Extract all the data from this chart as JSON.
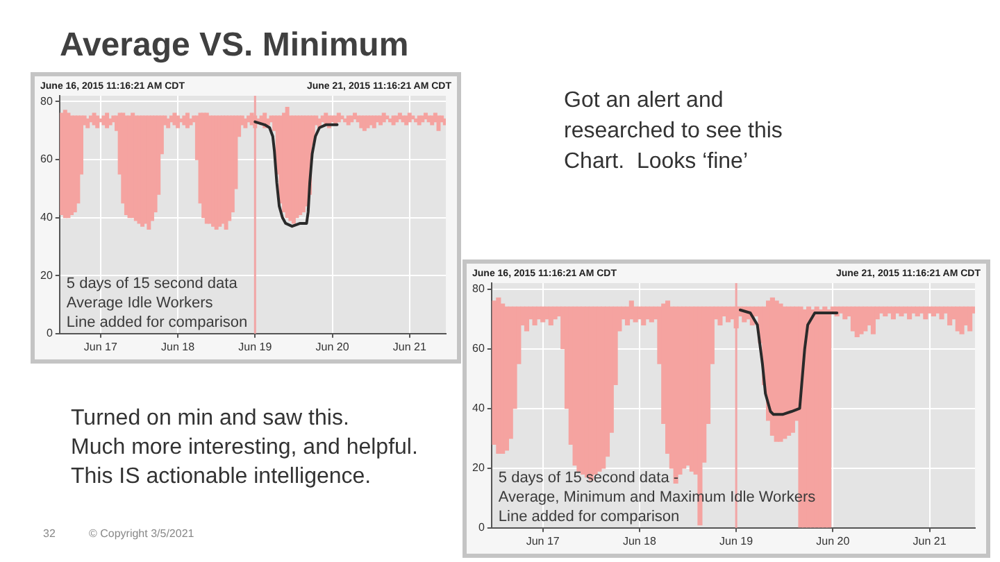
{
  "chart_data": [
    {
      "type": "other",
      "title": "Average VS. Minimum",
      "annotations": [
        "Got an alert and\nresearched to see this\nChart.  Looks ‘fine’",
        "Turned on min and saw this.\nMuch more interesting, and helpful.\nThis IS actionable intelligence.",
        "32",
        "© Copyright 3/5/2021"
      ]
    },
    {
      "type": "bar",
      "annotations": [
        "June 16, 2015 11:16:21 AM CDT",
        "June 21, 2015 11:16:21 AM CDT",
        "5 days of 15 second data\nAverage Idle Workers\nLine added for comparison"
      ],
      "xlim": [
        "2015-06-16T11:16",
        "2015-06-21T11:16"
      ],
      "xticks": [
        {
          "value": "2015-06-17",
          "label": "Jun 17"
        },
        {
          "value": "2015-06-18",
          "label": "Jun 18"
        },
        {
          "value": "2015-06-19",
          "label": "Jun 19"
        },
        {
          "value": "2015-06-20",
          "label": "Jun 20"
        },
        {
          "value": "2015-06-21",
          "label": "Jun 21"
        }
      ],
      "ylim": [
        0,
        82
      ],
      "yticks": [
        0,
        20,
        40,
        60,
        80
      ],
      "grid": true,
      "ref_lines": [
        {
          "axis": "x",
          "value": "2015-06-19",
          "color": "#f2a5a5"
        }
      ],
      "series": [
        {
          "type": "bar",
          "color": "#f5a3a0",
          "x": [
            "2015-06-16T12:00",
            "2015-06-16T13:00",
            "2015-06-16T14:00",
            "2015-06-16T15:00",
            "2015-06-16T16:00",
            "2015-06-16T17:00",
            "2015-06-16T18:00",
            "2015-06-16T19:00",
            "2015-06-16T20:00",
            "2015-06-16T21:00",
            "2015-06-16T22:00",
            "2015-06-16T23:00",
            "2015-06-17T00:00",
            "2015-06-17T01:00",
            "2015-06-17T02:00",
            "2015-06-17T03:00",
            "2015-06-17T04:00",
            "2015-06-17T05:00",
            "2015-06-17T06:00",
            "2015-06-17T07:00",
            "2015-06-17T08:00",
            "2015-06-17T09:00",
            "2015-06-17T10:00",
            "2015-06-17T11:00",
            "2015-06-17T12:00",
            "2015-06-17T13:00",
            "2015-06-17T14:00",
            "2015-06-17T15:00",
            "2015-06-17T16:00",
            "2015-06-17T17:00",
            "2015-06-17T18:00",
            "2015-06-17T19:00",
            "2015-06-17T20:00",
            "2015-06-17T21:00",
            "2015-06-17T22:00",
            "2015-06-17T23:00",
            "2015-06-18T00:00",
            "2015-06-18T01:00",
            "2015-06-18T02:00",
            "2015-06-18T03:00",
            "2015-06-18T04:00",
            "2015-06-18T05:00",
            "2015-06-18T06:00",
            "2015-06-18T07:00",
            "2015-06-18T08:00",
            "2015-06-18T09:00",
            "2015-06-18T10:00",
            "2015-06-18T11:00",
            "2015-06-18T12:00",
            "2015-06-18T13:00",
            "2015-06-18T14:00",
            "2015-06-18T15:00",
            "2015-06-18T16:00",
            "2015-06-18T17:00",
            "2015-06-18T18:00",
            "2015-06-18T19:00",
            "2015-06-18T20:00",
            "2015-06-18T21:00",
            "2015-06-18T22:00",
            "2015-06-18T23:00",
            "2015-06-19T00:00",
            "2015-06-19T01:00",
            "2015-06-19T02:00",
            "2015-06-19T03:00",
            "2015-06-19T04:00",
            "2015-06-19T05:00",
            "2015-06-19T06:00",
            "2015-06-19T07:00",
            "2015-06-19T08:00",
            "2015-06-19T09:00",
            "2015-06-19T10:00",
            "2015-06-19T11:00",
            "2015-06-19T12:00",
            "2015-06-19T13:00",
            "2015-06-19T14:00",
            "2015-06-19T15:00",
            "2015-06-19T16:00",
            "2015-06-19T17:00",
            "2015-06-19T18:00",
            "2015-06-19T19:00",
            "2015-06-19T20:00",
            "2015-06-19T21:00",
            "2015-06-19T22:00",
            "2015-06-19T23:00",
            "2015-06-20T00:00",
            "2015-06-20T01:00",
            "2015-06-20T02:00",
            "2015-06-20T03:00",
            "2015-06-20T04:00",
            "2015-06-20T05:00",
            "2015-06-20T06:00",
            "2015-06-20T07:00",
            "2015-06-20T08:00",
            "2015-06-20T09:00",
            "2015-06-20T10:00",
            "2015-06-20T11:00",
            "2015-06-20T12:00",
            "2015-06-20T13:00",
            "2015-06-20T14:00",
            "2015-06-20T15:00",
            "2015-06-20T16:00",
            "2015-06-20T17:00",
            "2015-06-20T18:00",
            "2015-06-20T19:00",
            "2015-06-20T20:00",
            "2015-06-20T21:00",
            "2015-06-20T22:00",
            "2015-06-20T23:00",
            "2015-06-21T00:00",
            "2015-06-21T01:00",
            "2015-06-21T02:00",
            "2015-06-21T03:00",
            "2015-06-21T04:00",
            "2015-06-21T05:00",
            "2015-06-21T06:00",
            "2015-06-21T07:00",
            "2015-06-21T08:00",
            "2015-06-21T09:00",
            "2015-06-21T10:00",
            "2015-06-21T11:00"
          ],
          "base": [
            41,
            40,
            40,
            41,
            42,
            45,
            55,
            72,
            71,
            73,
            72,
            71,
            73,
            72,
            71,
            72,
            73,
            70,
            55,
            45,
            41,
            40,
            40,
            39,
            38,
            37,
            38,
            36,
            39,
            42,
            48,
            62,
            72,
            71,
            73,
            72,
            71,
            73,
            72,
            71,
            72,
            73,
            60,
            45,
            40,
            38,
            38,
            37,
            36,
            37,
            38,
            36,
            39,
            42,
            50,
            68,
            72,
            71,
            73,
            72,
            71,
            73,
            72,
            71,
            72,
            73,
            70,
            55,
            45,
            42,
            40,
            39,
            38,
            40,
            41,
            42,
            44,
            48,
            65,
            72,
            71,
            73,
            72,
            71,
            73,
            72,
            73,
            74,
            73,
            72,
            73,
            74,
            73,
            71,
            70,
            71,
            72,
            71,
            73,
            72,
            73,
            74,
            73,
            72,
            73,
            74,
            73,
            72,
            73,
            74,
            73,
            72,
            73,
            74,
            73,
            72,
            73,
            70,
            73,
            72
          ],
          "values": [
            35,
            37,
            36,
            34,
            33,
            30,
            20,
            3,
            3,
            2,
            4,
            4,
            1,
            3,
            5,
            2,
            2,
            5,
            21,
            31,
            34,
            35,
            36,
            36,
            37,
            38,
            37,
            39,
            36,
            33,
            27,
            13,
            3,
            3,
            2,
            4,
            4,
            1,
            3,
            5,
            2,
            2,
            15,
            31,
            36,
            38,
            37,
            38,
            39,
            38,
            37,
            39,
            36,
            33,
            25,
            7,
            3,
            3,
            2,
            4,
            4,
            1,
            3,
            5,
            2,
            2,
            5,
            20,
            30,
            34,
            38,
            36,
            37,
            35,
            34,
            33,
            31,
            27,
            10,
            3,
            3,
            2,
            4,
            4,
            2,
            3,
            3,
            1,
            1,
            3,
            2,
            2,
            2,
            4,
            5,
            4,
            3,
            4,
            2,
            3,
            3,
            1,
            1,
            3,
            2,
            2,
            2,
            3,
            3,
            1,
            1,
            3,
            2,
            2,
            2,
            3,
            3,
            5,
            2,
            2
          ]
        },
        {
          "type": "line",
          "color": "#2a2a2a",
          "x": [
            "2015-06-19T00:00",
            "2015-06-19T03:00",
            "2015-06-19T04:30",
            "2015-06-19T05:30",
            "2015-06-19T06:00",
            "2015-06-19T06:45",
            "2015-06-19T07:30",
            "2015-06-19T08:30",
            "2015-06-19T09:30",
            "2015-06-19T11:30",
            "2015-06-19T14:00",
            "2015-06-19T16:00",
            "2015-06-19T16:30",
            "2015-06-19T17:00",
            "2015-06-19T17:45",
            "2015-06-19T18:45",
            "2015-06-19T20:00",
            "2015-06-19T22:00",
            "2015-06-20T01:30"
          ],
          "values": [
            73,
            72,
            71,
            68,
            63,
            52,
            44,
            40,
            38,
            37,
            38,
            38,
            42,
            52,
            62,
            68,
            71,
            72,
            72
          ]
        }
      ]
    },
    {
      "type": "bar",
      "annotations": [
        "June 16, 2015 11:16:21 AM CDT",
        "June 21, 2015 11:16:21 AM CDT",
        "5 days of 15 second data -\nAverage, Minimum and Maximum Idle Workers\nLine added for comparison"
      ],
      "xlim": [
        "2015-06-16T11:16",
        "2015-06-21T11:16"
      ],
      "xticks": [
        {
          "value": "2015-06-17",
          "label": "Jun 17"
        },
        {
          "value": "2015-06-18",
          "label": "Jun 18"
        },
        {
          "value": "2015-06-19",
          "label": "Jun 19"
        },
        {
          "value": "2015-06-20",
          "label": "Jun 20"
        },
        {
          "value": "2015-06-21",
          "label": "Jun 21"
        }
      ],
      "ylim": [
        0,
        82
      ],
      "yticks": [
        0,
        20,
        40,
        60,
        80
      ],
      "grid": true,
      "ref_lines": [
        {
          "axis": "x",
          "value": "2015-06-19",
          "color": "#f2a5a5"
        }
      ],
      "series": [
        {
          "type": "bar",
          "color": "#f5a3a0",
          "x": [
            "2015-06-16T12:00",
            "2015-06-16T13:00",
            "2015-06-16T14:00",
            "2015-06-16T15:00",
            "2015-06-16T16:00",
            "2015-06-16T17:00",
            "2015-06-16T18:00",
            "2015-06-16T19:00",
            "2015-06-16T20:00",
            "2015-06-16T21:00",
            "2015-06-16T22:00",
            "2015-06-16T23:00",
            "2015-06-17T00:00",
            "2015-06-17T01:00",
            "2015-06-17T02:00",
            "2015-06-17T03:00",
            "2015-06-17T04:00",
            "2015-06-17T05:00",
            "2015-06-17T06:00",
            "2015-06-17T07:00",
            "2015-06-17T08:00",
            "2015-06-17T09:00",
            "2015-06-17T10:00",
            "2015-06-17T11:00",
            "2015-06-17T12:00",
            "2015-06-17T13:00",
            "2015-06-17T14:00",
            "2015-06-17T15:00",
            "2015-06-17T16:00",
            "2015-06-17T17:00",
            "2015-06-17T18:00",
            "2015-06-17T19:00",
            "2015-06-17T20:00",
            "2015-06-17T21:00",
            "2015-06-17T22:00",
            "2015-06-17T23:00",
            "2015-06-18T00:00",
            "2015-06-18T01:00",
            "2015-06-18T02:00",
            "2015-06-18T03:00",
            "2015-06-18T04:00",
            "2015-06-18T05:00",
            "2015-06-18T06:00",
            "2015-06-18T07:00",
            "2015-06-18T08:00",
            "2015-06-18T09:00",
            "2015-06-18T10:00",
            "2015-06-18T11:00",
            "2015-06-18T12:00",
            "2015-06-18T13:00",
            "2015-06-18T14:00",
            "2015-06-18T15:00",
            "2015-06-18T16:00",
            "2015-06-18T17:00",
            "2015-06-18T18:00",
            "2015-06-18T19:00",
            "2015-06-18T20:00",
            "2015-06-18T21:00",
            "2015-06-18T22:00",
            "2015-06-18T23:00",
            "2015-06-19T00:00",
            "2015-06-19T01:00",
            "2015-06-19T02:00",
            "2015-06-19T03:00",
            "2015-06-19T04:00",
            "2015-06-19T05:00",
            "2015-06-19T06:00",
            "2015-06-19T07:00",
            "2015-06-19T08:00",
            "2015-06-19T09:00",
            "2015-06-19T10:00",
            "2015-06-19T11:00",
            "2015-06-19T12:00",
            "2015-06-19T13:00",
            "2015-06-19T14:00",
            "2015-06-19T15:00",
            "2015-06-19T16:00",
            "2015-06-19T17:00",
            "2015-06-19T18:00",
            "2015-06-19T19:00",
            "2015-06-19T20:00",
            "2015-06-19T21:00",
            "2015-06-19T22:00",
            "2015-06-19T23:00",
            "2015-06-20T00:00",
            "2015-06-20T01:00",
            "2015-06-20T02:00",
            "2015-06-20T03:00",
            "2015-06-20T04:00",
            "2015-06-20T05:00",
            "2015-06-20T06:00",
            "2015-06-20T07:00",
            "2015-06-20T08:00",
            "2015-06-20T09:00",
            "2015-06-20T10:00",
            "2015-06-20T11:00",
            "2015-06-20T12:00",
            "2015-06-20T13:00",
            "2015-06-20T14:00",
            "2015-06-20T15:00",
            "2015-06-20T16:00",
            "2015-06-20T17:00",
            "2015-06-20T18:00",
            "2015-06-20T19:00",
            "2015-06-20T20:00",
            "2015-06-20T21:00",
            "2015-06-20T22:00",
            "2015-06-20T23:00",
            "2015-06-21T00:00",
            "2015-06-21T01:00",
            "2015-06-21T02:00",
            "2015-06-21T03:00",
            "2015-06-21T04:00",
            "2015-06-21T05:00",
            "2015-06-21T06:00",
            "2015-06-21T07:00",
            "2015-06-21T08:00",
            "2015-06-21T09:00",
            "2015-06-21T10:00",
            "2015-06-21T11:00"
          ],
          "base": [
            28,
            25,
            25,
            26,
            30,
            40,
            55,
            68,
            66,
            70,
            68,
            70,
            69,
            70,
            68,
            70,
            71,
            60,
            40,
            28,
            21,
            19,
            18,
            17,
            16,
            18,
            19,
            20,
            24,
            32,
            48,
            66,
            70,
            68,
            70,
            69,
            70,
            68,
            70,
            69,
            70,
            55,
            35,
            25,
            20,
            15,
            18,
            20,
            21,
            19,
            18,
            1,
            22,
            35,
            55,
            70,
            68,
            71,
            69,
            70,
            67,
            71,
            69,
            70,
            68,
            71,
            62,
            48,
            36,
            31,
            29,
            29,
            30,
            31,
            32,
            36,
            0,
            0,
            0,
            0,
            0,
            0,
            0,
            0,
            72,
            71,
            72,
            70,
            71,
            66,
            64,
            65,
            66,
            68,
            65,
            70,
            72,
            71,
            72,
            70,
            72,
            71,
            72,
            70,
            72,
            71,
            72,
            70,
            72,
            71,
            72,
            70,
            72,
            68,
            70,
            66,
            65,
            68,
            66,
            72
          ],
          "values": [
            48,
            52,
            50,
            48,
            44,
            34,
            19,
            6,
            8,
            4,
            6,
            4,
            5,
            4,
            6,
            4,
            3,
            14,
            34,
            46,
            53,
            55,
            56,
            57,
            58,
            56,
            55,
            54,
            50,
            42,
            26,
            8,
            4,
            6,
            6,
            5,
            4,
            6,
            4,
            5,
            4,
            19,
            40,
            51,
            54,
            59,
            56,
            54,
            53,
            55,
            56,
            73,
            52,
            39,
            19,
            4,
            6,
            3,
            5,
            4,
            7,
            3,
            5,
            4,
            6,
            3,
            12,
            26,
            40,
            46,
            47,
            46,
            44,
            43,
            42,
            38,
            74,
            73,
            74,
            73,
            74,
            73,
            74,
            73,
            2,
            3,
            2,
            4,
            3,
            8,
            10,
            9,
            8,
            6,
            9,
            4,
            2,
            3,
            2,
            4,
            2,
            3,
            2,
            4,
            2,
            3,
            2,
            4,
            2,
            3,
            2,
            4,
            2,
            6,
            4,
            8,
            9,
            6,
            8,
            2
          ]
        },
        {
          "type": "line",
          "color": "#2a2a2a",
          "x": [
            "2015-06-19T01:00",
            "2015-06-19T03:30",
            "2015-06-19T05:15",
            "2015-06-19T06:30",
            "2015-06-19T07:15",
            "2015-06-19T08:30",
            "2015-06-19T09:15",
            "2015-06-19T11:30",
            "2015-06-19T13:45",
            "2015-06-19T15:45",
            "2015-06-19T16:15",
            "2015-06-19T17:00",
            "2015-06-19T17:45",
            "2015-06-19T19:30",
            "2015-06-19T23:00",
            "2015-06-20T01:00"
          ],
          "values": [
            73,
            72,
            68,
            55,
            45,
            39,
            38,
            38,
            39,
            40,
            48,
            60,
            68,
            72,
            72,
            72
          ]
        }
      ]
    }
  ]
}
